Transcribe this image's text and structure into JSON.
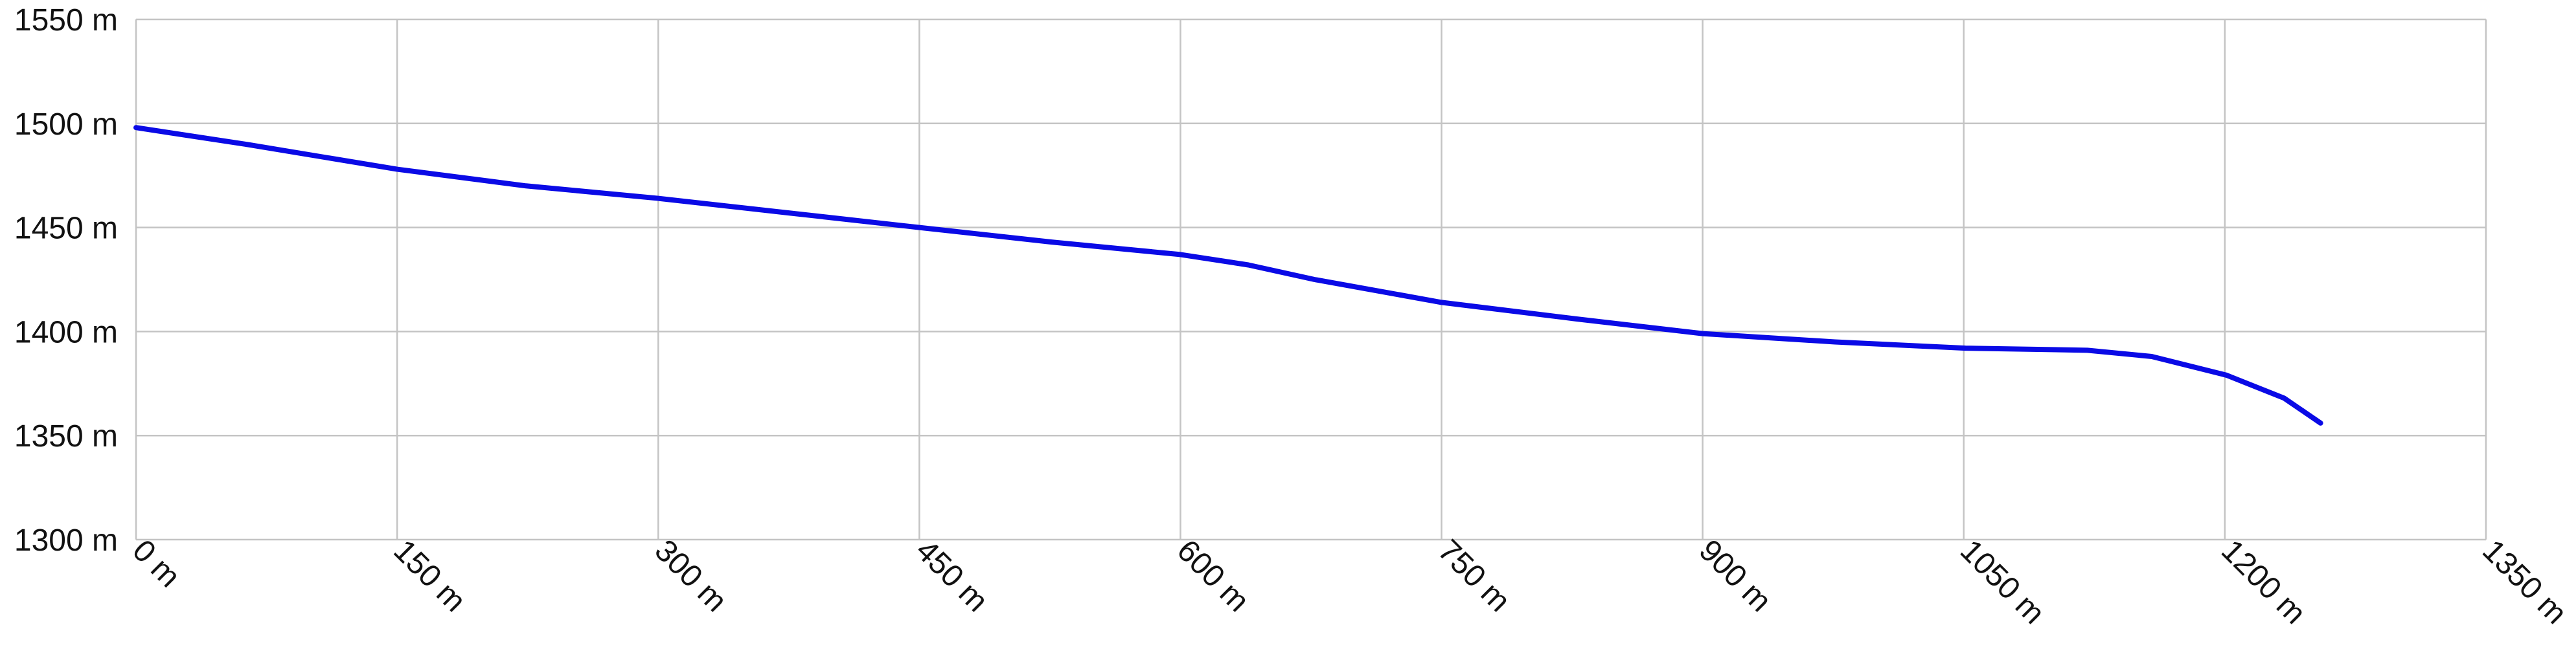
{
  "chart_data": {
    "type": "line",
    "x": [
      0,
      63,
      150,
      224,
      300,
      375,
      450,
      526,
      600,
      639,
      677,
      750,
      828,
      900,
      976,
      1051,
      1121,
      1158,
      1201,
      1234,
      1255
    ],
    "series": [
      {
        "color": "#0a0ae6",
        "values": [
          1498,
          1490,
          1478,
          1470,
          1464,
          1457,
          1450,
          1443,
          1437,
          1432,
          1425,
          1414,
          1406,
          1399,
          1395,
          1392,
          1391,
          1388,
          1379,
          1368,
          1356
        ]
      }
    ],
    "xlim": [
      0,
      1350
    ],
    "xticks": [
      {
        "value": 0,
        "label": "0 m"
      },
      {
        "value": 150,
        "label": "150 m"
      },
      {
        "value": 300,
        "label": "300 m"
      },
      {
        "value": 450,
        "label": "450 m"
      },
      {
        "value": 600,
        "label": "600 m"
      },
      {
        "value": 750,
        "label": "750 m"
      },
      {
        "value": 900,
        "label": "900 m"
      },
      {
        "value": 1050,
        "label": "1050 m"
      },
      {
        "value": 1200,
        "label": "1200 m"
      },
      {
        "value": 1350,
        "label": "1350 m"
      }
    ],
    "ylim": [
      1300,
      1550
    ],
    "yticks": [
      {
        "value": 1300,
        "label": "1300 m"
      },
      {
        "value": 1350,
        "label": "1350 m"
      },
      {
        "value": 1400,
        "label": "1400 m"
      },
      {
        "value": 1450,
        "label": "1450 m"
      },
      {
        "value": 1500,
        "label": "1500 m"
      },
      {
        "value": 1550,
        "label": "1550 m"
      }
    ],
    "grid": true
  }
}
